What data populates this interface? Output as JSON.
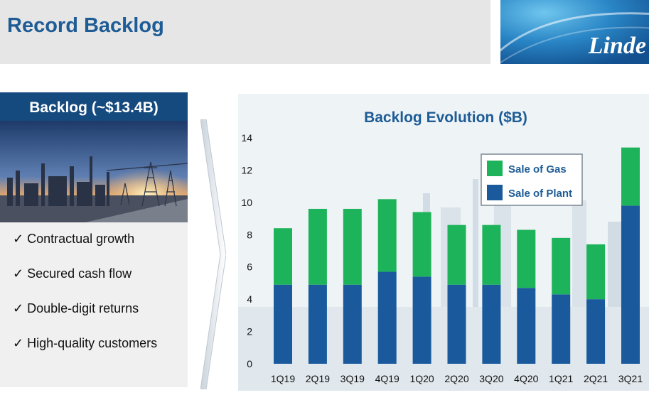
{
  "header": {
    "title": "Record Backlog",
    "logo_text": "Linde"
  },
  "left_panel": {
    "heading": "Backlog (~$13.4B)",
    "bullets": [
      "✓ Contractual growth",
      "✓ Secured cash flow",
      "✓ Double-digit returns",
      "✓ High-quality customers"
    ]
  },
  "colors": {
    "title_blue": "#1e5c96",
    "heading_bg": "#154a7e",
    "gas_green": "#1db35a",
    "plant_blue": "#1a5a9c"
  },
  "chart_data": {
    "type": "bar",
    "stacked": true,
    "title": "Backlog Evolution ($B)",
    "categories": [
      "1Q19",
      "2Q19",
      "3Q19",
      "4Q19",
      "1Q20",
      "2Q20",
      "3Q20",
      "4Q20",
      "1Q21",
      "2Q21",
      "3Q21"
    ],
    "series": [
      {
        "name": "Sale of Plant",
        "values": [
          4.9,
          4.9,
          4.9,
          5.7,
          5.4,
          4.9,
          4.9,
          4.7,
          4.3,
          4.0,
          9.8
        ]
      },
      {
        "name": "Sale of Gas",
        "values": [
          3.5,
          4.7,
          4.7,
          4.5,
          4.0,
          3.7,
          3.7,
          3.6,
          3.5,
          3.4,
          3.6
        ]
      }
    ],
    "ylim": [
      0,
      14
    ],
    "yticks": [
      "0",
      "2",
      "4",
      "6",
      "8",
      "10",
      "12",
      "14"
    ],
    "legend_position": "top-right",
    "grid": false
  }
}
